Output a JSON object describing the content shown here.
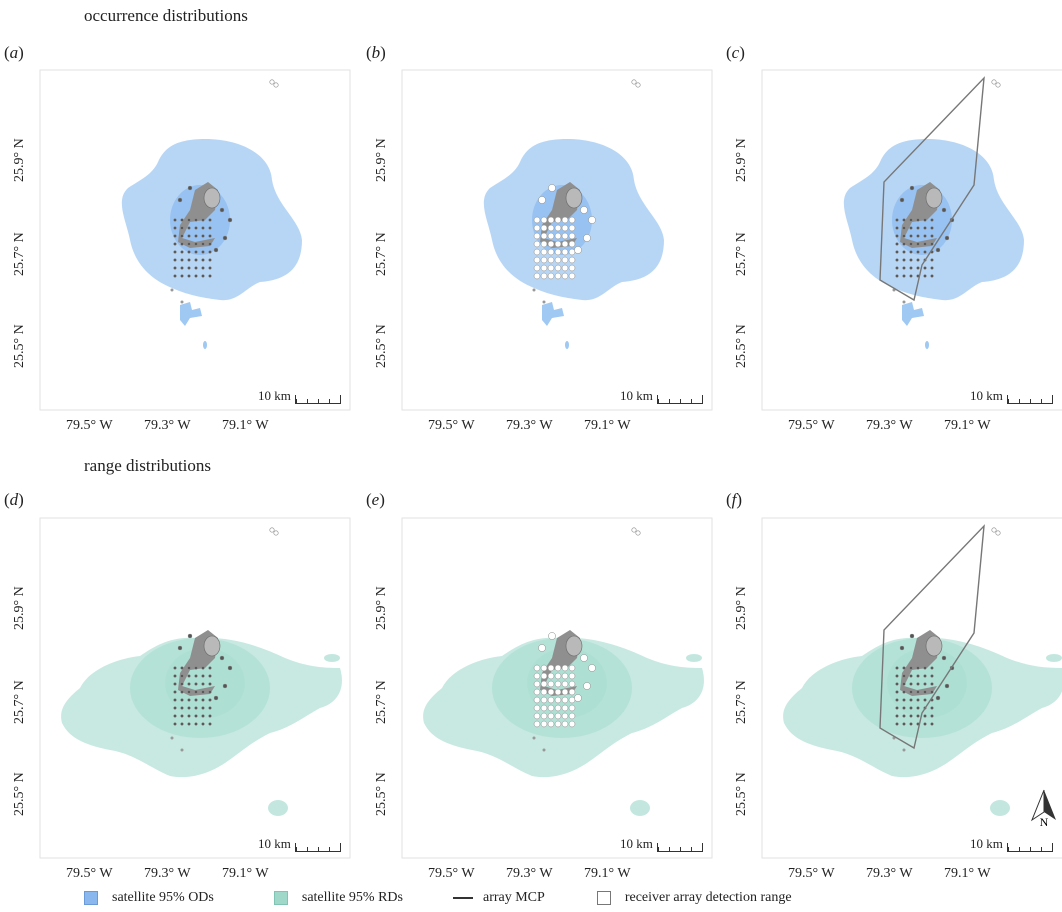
{
  "sections": {
    "top": "occurrence distributions",
    "bottom": "range distributions"
  },
  "panels": [
    {
      "id": "a",
      "label": "a",
      "fill": "#9fc8f2"
    },
    {
      "id": "b",
      "label": "b",
      "fill": "#9fc8f2"
    },
    {
      "id": "c",
      "label": "c",
      "fill": "#9fc8f2"
    },
    {
      "id": "d",
      "label": "d",
      "fill": "#a9ddd1"
    },
    {
      "id": "e",
      "label": "e",
      "fill": "#a9ddd1"
    },
    {
      "id": "f",
      "label": "f",
      "fill": "#a9ddd1"
    }
  ],
  "axes": {
    "y_ticks": [
      "25.9° N",
      "25.7° N",
      "25.5° N"
    ],
    "x_ticks": [
      "79.5° W",
      "79.3° W",
      "79.1° W"
    ]
  },
  "scale_label": "10 km",
  "north_label": "N",
  "legend": {
    "od": "satellite 95% ODs",
    "rd": "satellite 95% RDs",
    "mcp": "array MCP",
    "range": "receiver array detection range"
  },
  "colors": {
    "od_fill": "#9fc8f2",
    "rd_fill": "#a9ddd1",
    "od_swatch": "#8ab8ee",
    "rd_swatch": "#9fd7c8",
    "island": "#8f8f8f",
    "outline": "#555555"
  }
}
